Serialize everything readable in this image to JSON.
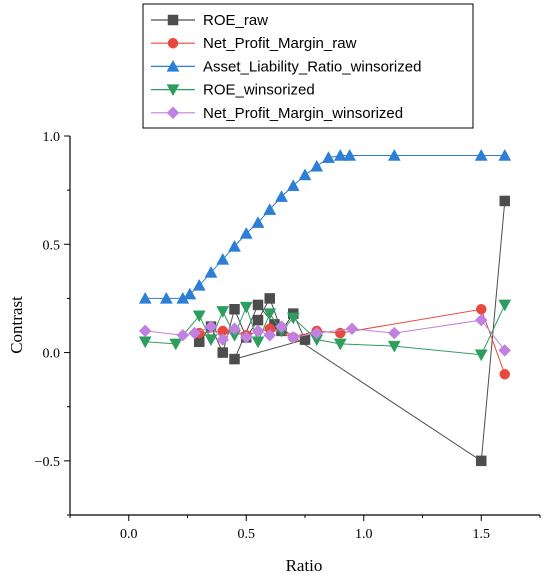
{
  "chart_data": {
    "type": "line",
    "xlabel": "Ratio",
    "ylabel": "Contrast",
    "xlim": [
      -0.25,
      1.75
    ],
    "ylim": [
      -0.75,
      1.0
    ],
    "xticks": [
      0.0,
      0.5,
      1.0,
      1.5
    ],
    "xtick_labels": [
      "0.0",
      "0.5",
      "1.0",
      "1.5"
    ],
    "yticks": [
      -0.5,
      0.0,
      0.5,
      1.0
    ],
    "ytick_labels": [
      "−0.5",
      "0.0",
      "0.5",
      "1.0"
    ],
    "grid": false,
    "legend_position": "top",
    "series": [
      {
        "name": "ROE_raw",
        "color": "#4d4d4d",
        "marker": "square",
        "x": [
          0.3,
          0.35,
          0.4,
          0.45,
          0.5,
          0.55,
          0.6,
          0.65,
          0.7,
          0.75,
          0.45,
          0.55,
          0.62,
          1.5,
          1.6
        ],
        "y": [
          0.05,
          0.12,
          0.0,
          0.2,
          0.07,
          0.15,
          0.25,
          0.1,
          0.18,
          0.06,
          -0.03,
          0.22,
          0.13,
          -0.5,
          0.7
        ]
      },
      {
        "name": "Net_Profit_Margin_raw",
        "color": "#e8493f",
        "marker": "circle",
        "x": [
          0.3,
          0.4,
          0.5,
          0.6,
          0.7,
          0.8,
          0.9,
          1.5,
          1.6
        ],
        "y": [
          0.09,
          0.1,
          0.08,
          0.11,
          0.07,
          0.1,
          0.09,
          0.2,
          -0.1
        ]
      },
      {
        "name": "Asset_Liability_Ratio_winsorized",
        "color": "#2c7fd4",
        "marker": "triangle-up",
        "x": [
          0.07,
          0.16,
          0.23,
          0.26,
          0.3,
          0.35,
          0.4,
          0.45,
          0.5,
          0.55,
          0.6,
          0.65,
          0.7,
          0.75,
          0.8,
          0.85,
          0.9,
          0.94,
          1.13,
          1.5,
          1.6
        ],
        "y": [
          0.25,
          0.25,
          0.25,
          0.27,
          0.31,
          0.37,
          0.43,
          0.49,
          0.55,
          0.6,
          0.66,
          0.72,
          0.77,
          0.82,
          0.86,
          0.9,
          0.91,
          0.91,
          0.91,
          0.91,
          0.91
        ]
      },
      {
        "name": "ROE_winsorized",
        "color": "#2e9e5f",
        "marker": "triangle-down",
        "x": [
          0.07,
          0.2,
          0.3,
          0.35,
          0.4,
          0.45,
          0.5,
          0.55,
          0.6,
          0.65,
          0.7,
          0.8,
          0.9,
          1.13,
          1.5,
          1.6
        ],
        "y": [
          0.05,
          0.04,
          0.17,
          0.06,
          0.19,
          0.08,
          0.21,
          0.05,
          0.18,
          0.1,
          0.16,
          0.06,
          0.04,
          0.03,
          -0.01,
          0.22
        ]
      },
      {
        "name": "Net_Profit_Margin_winsorized",
        "color": "#c181e0",
        "marker": "diamond",
        "x": [
          0.07,
          0.23,
          0.28,
          0.35,
          0.4,
          0.45,
          0.5,
          0.55,
          0.6,
          0.65,
          0.7,
          0.8,
          0.95,
          1.13,
          1.5,
          1.6
        ],
        "y": [
          0.1,
          0.08,
          0.09,
          0.12,
          0.06,
          0.11,
          0.07,
          0.1,
          0.08,
          0.12,
          0.07,
          0.09,
          0.11,
          0.09,
          0.15,
          0.01
        ]
      }
    ]
  }
}
